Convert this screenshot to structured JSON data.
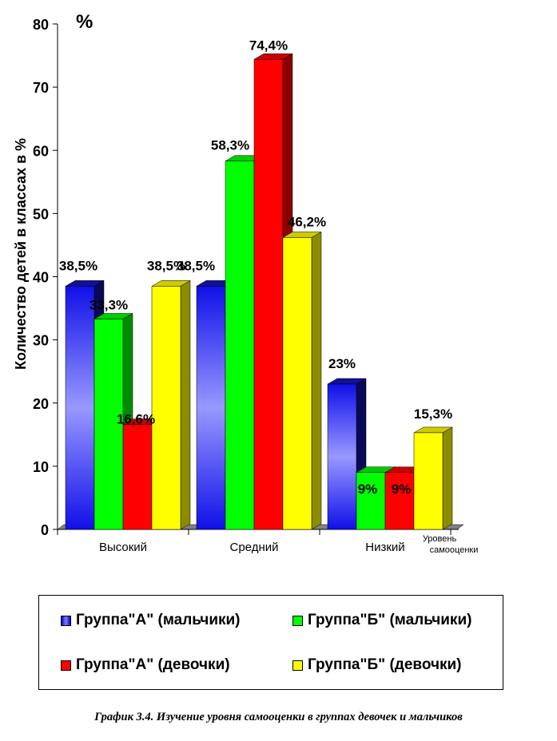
{
  "chart_data": {
    "type": "bar",
    "unit_label": "%",
    "ylabel": "Количество детей в классах в %",
    "xlabel": "Уровень самооценки",
    "ylim": [
      0,
      80
    ],
    "yticks": [
      0,
      10,
      20,
      30,
      40,
      50,
      60,
      70,
      80
    ],
    "categories": [
      "Высокий",
      "Средний",
      "Низкий"
    ],
    "series": [
      {
        "name": "Группа\"А\" (мальчики)",
        "values": [
          38.5,
          38.5,
          23
        ],
        "labels": [
          "38,5%",
          "",
          "23%"
        ],
        "color": "#1a1aff"
      },
      {
        "name": "Группа\"Б\" (мальчики)",
        "values": [
          33.3,
          58.3,
          9
        ],
        "labels": [
          "33,3%",
          "58,3%",
          "9%"
        ],
        "color": "#00ff00"
      },
      {
        "name": "Группа\"А\" (девочки)",
        "values": [
          16.6,
          74.4,
          9
        ],
        "labels": [
          "16,6%",
          "74,4%",
          "9%"
        ],
        "color": "#ff0000"
      },
      {
        "name": "Группа\"Б\" (девочки)",
        "values": [
          38.5,
          46.2,
          15.3
        ],
        "labels": [
          "38,5%",
          "46,2%",
          "15,3%"
        ],
        "color": "#ffff00"
      }
    ],
    "extra_labels": [
      "38,5%"
    ],
    "grid": false,
    "legend_position": "bottom"
  },
  "caption": "График 3.4. Изучение уровня самооценки в группах девочек и мальчиков"
}
